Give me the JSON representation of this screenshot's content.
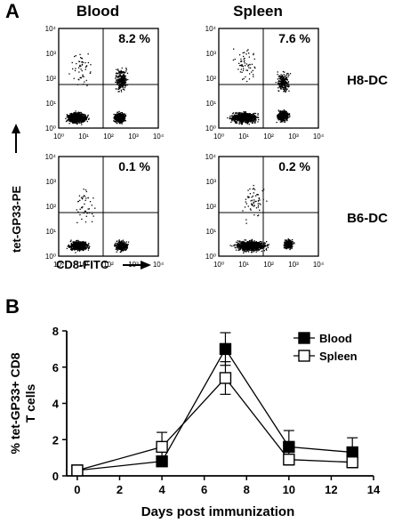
{
  "panel_a": {
    "letter": "A",
    "columns": [
      "Blood",
      "Spleen"
    ],
    "rows": [
      "H8-DC",
      "B6-DC"
    ],
    "y_axis_label": "tet-GP33-PE",
    "x_axis_label": "CD8-FITC",
    "tick_labels": [
      "10⁰",
      "10¹",
      "10²",
      "10³",
      "10⁴"
    ],
    "plots": [
      {
        "tissue": "Blood",
        "group": "H8-DC",
        "percent": "8.2 %"
      },
      {
        "tissue": "Spleen",
        "group": "H8-DC",
        "percent": "7.6 %"
      },
      {
        "tissue": "Blood",
        "group": "B6-DC",
        "percent": "0.1 %"
      },
      {
        "tissue": "Spleen",
        "group": "B6-DC",
        "percent": "0.2 %"
      }
    ]
  },
  "panel_b": {
    "letter": "B",
    "chart_data": {
      "type": "line",
      "xlabel": "Days post immunization",
      "ylabel": "% tet-GP33+ CD8\nT cells",
      "xlim": [
        -0.5,
        14
      ],
      "ylim": [
        0,
        8
      ],
      "xticks": [
        0,
        2,
        4,
        6,
        8,
        10,
        12,
        14
      ],
      "yticks": [
        0,
        2,
        4,
        6,
        8
      ],
      "legend_position": "top-right",
      "series": [
        {
          "name": "Blood",
          "marker": "filled-square",
          "x": [
            0,
            4,
            7,
            10,
            13
          ],
          "y": [
            0.3,
            0.8,
            7.0,
            1.6,
            1.3
          ],
          "err": [
            0.0,
            0.1,
            0.9,
            0.9,
            0.8
          ]
        },
        {
          "name": "Spleen",
          "marker": "open-square",
          "x": [
            0,
            4,
            7,
            10,
            13
          ],
          "y": [
            0.3,
            1.6,
            5.4,
            0.9,
            0.75
          ],
          "err": [
            0.0,
            0.8,
            0.9,
            0.3,
            0.3
          ]
        }
      ]
    }
  }
}
